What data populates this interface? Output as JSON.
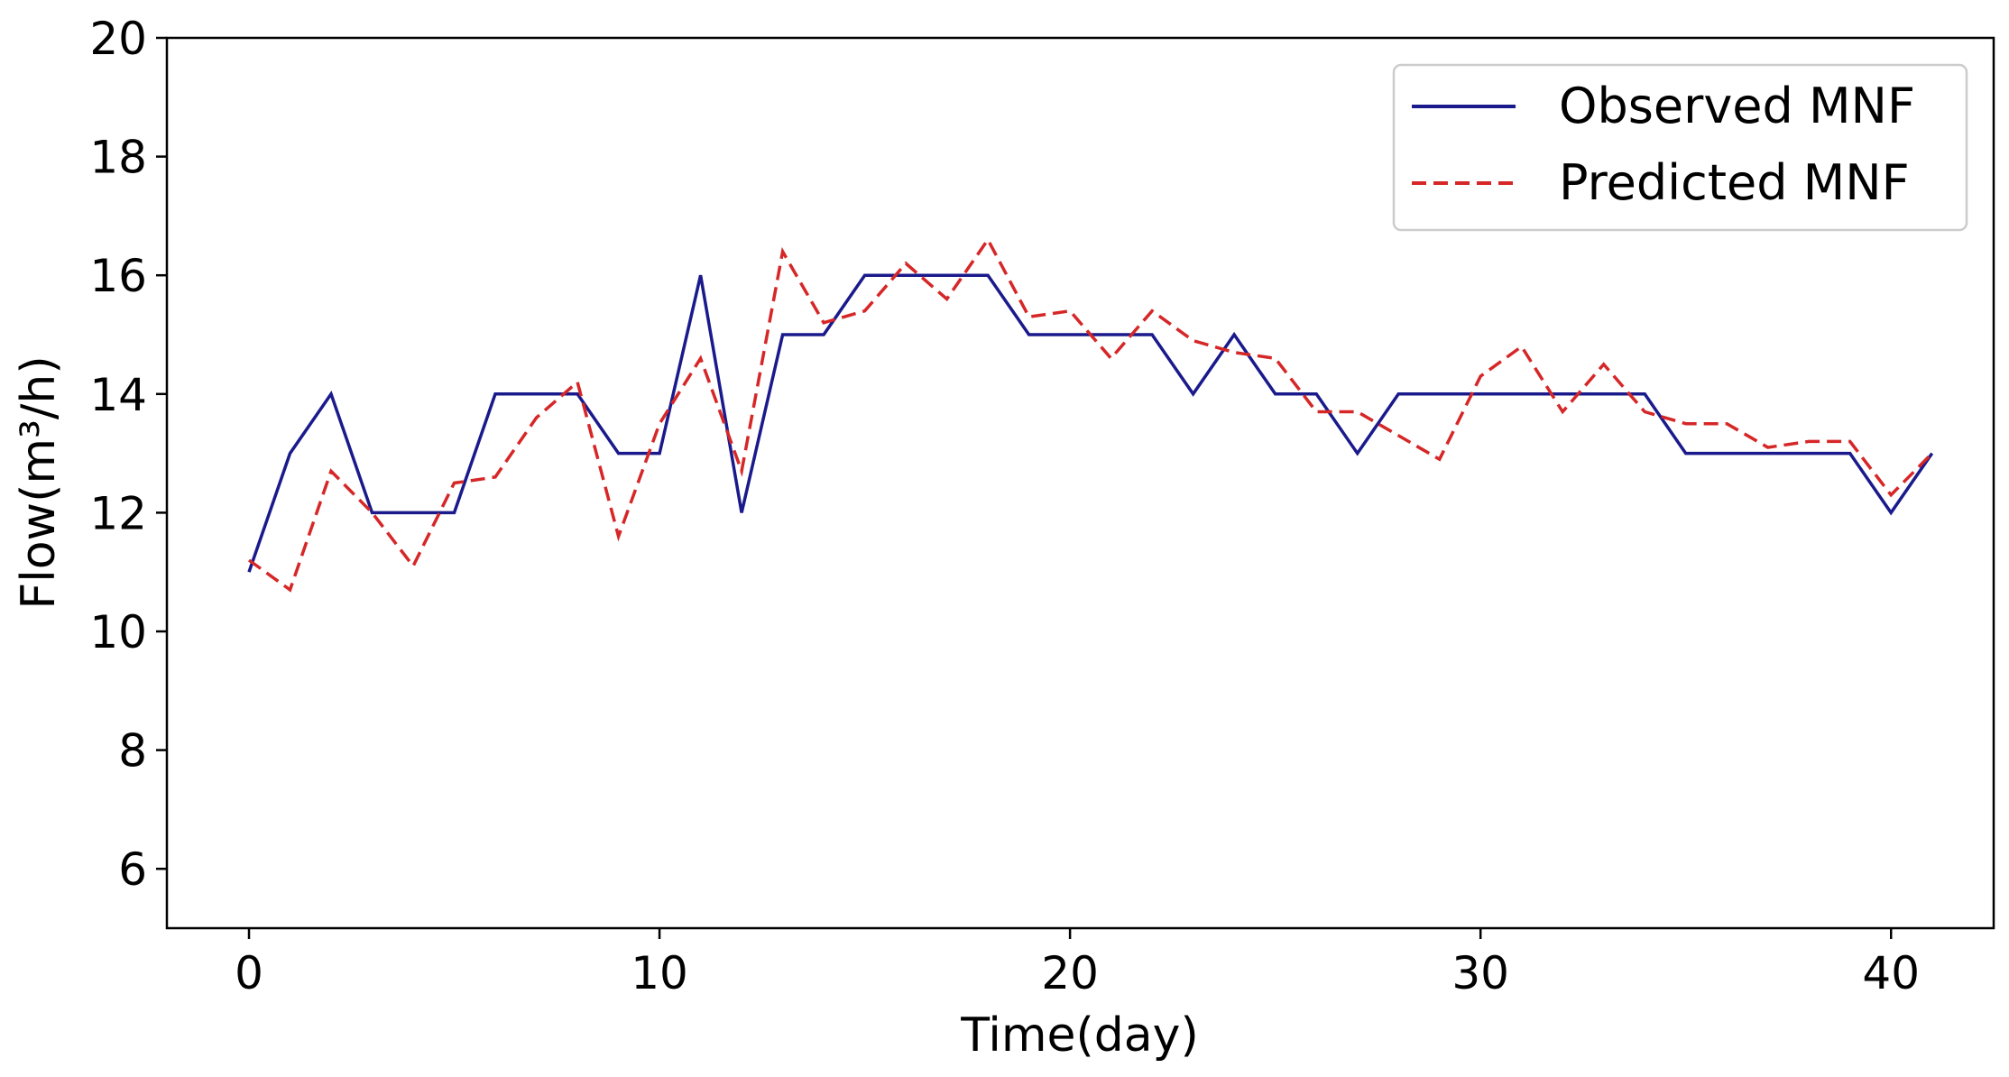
{
  "chart_data": {
    "type": "line",
    "title": "",
    "xlabel": "Time(day)",
    "ylabel": "Flow(m³/h)",
    "xlim": [
      -2,
      42.5
    ],
    "ylim": [
      5,
      20
    ],
    "xticks": [
      0,
      10,
      20,
      30,
      40
    ],
    "yticks": [
      6,
      8,
      10,
      12,
      14,
      16,
      18,
      20
    ],
    "grid": false,
    "legend_position": "top-right",
    "x": [
      0,
      1,
      2,
      3,
      4,
      5,
      6,
      7,
      8,
      9,
      10,
      11,
      12,
      13,
      14,
      15,
      16,
      17,
      18,
      19,
      20,
      21,
      22,
      23,
      24,
      25,
      26,
      27,
      28,
      29,
      30,
      31,
      32,
      33,
      34,
      35,
      36,
      37,
      38,
      39,
      40,
      41
    ],
    "series": [
      {
        "name": "Observed MNF",
        "color": "#1a1a8c",
        "style": "solid",
        "values": [
          11,
          13,
          14,
          12,
          12,
          12,
          14,
          14,
          14,
          13,
          13,
          16,
          12,
          15,
          15,
          16,
          16,
          16,
          16,
          15,
          15,
          15,
          15,
          14,
          15,
          14,
          14,
          13,
          14,
          14,
          14,
          14,
          14,
          14,
          14,
          13,
          13,
          13,
          13,
          13,
          12,
          13
        ]
      },
      {
        "name": "Predicted MNF",
        "color": "#d62728",
        "style": "dashed",
        "values": [
          11.2,
          10.7,
          12.7,
          12.0,
          11.1,
          12.5,
          12.6,
          13.6,
          14.2,
          11.6,
          13.5,
          14.6,
          12.7,
          16.4,
          15.2,
          15.4,
          16.2,
          15.6,
          16.6,
          15.3,
          15.4,
          14.6,
          15.4,
          14.9,
          14.7,
          14.6,
          13.7,
          13.7,
          13.3,
          12.9,
          14.3,
          14.8,
          13.7,
          14.5,
          13.7,
          13.5,
          13.5,
          13.1,
          13.2,
          13.2,
          12.3,
          13.0
        ]
      }
    ]
  }
}
